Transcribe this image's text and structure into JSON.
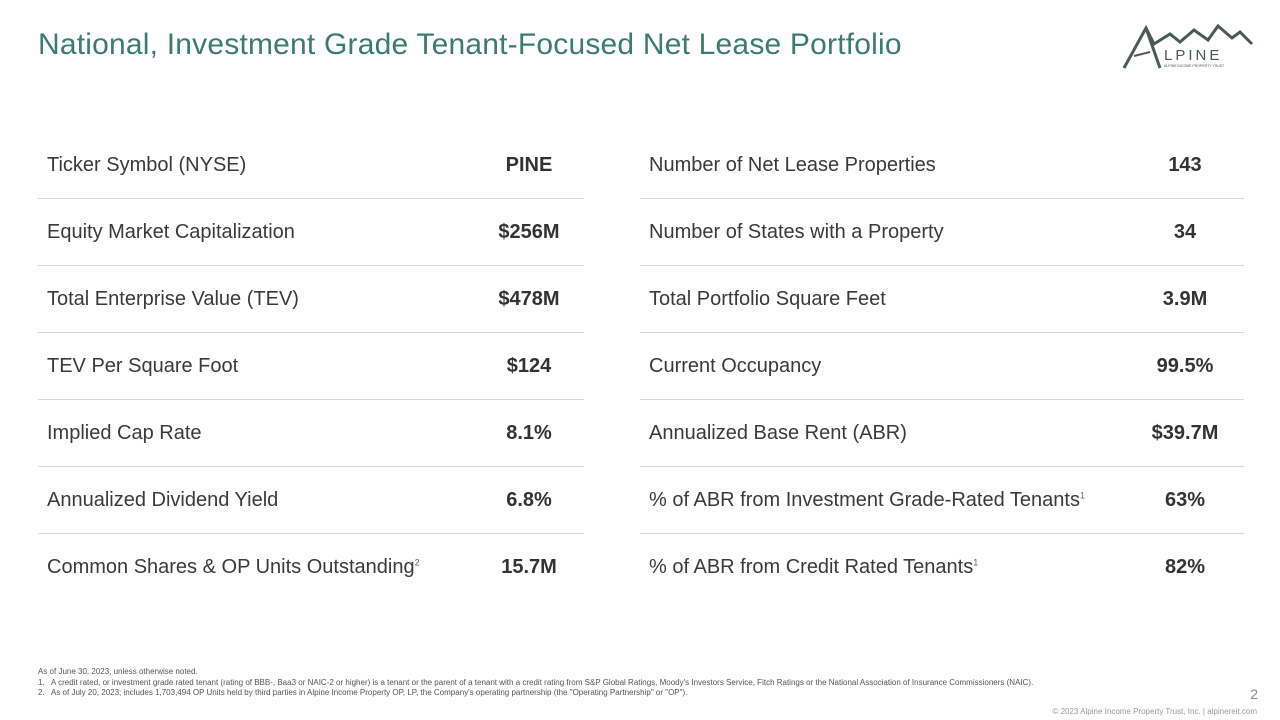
{
  "title": "National, Investment Grade Tenant-Focused Net Lease Portfolio",
  "logo": {
    "text": "ALPINE",
    "tagline": "ALPINE INCOME PROPERTY TRUST",
    "color": "#4a5a55"
  },
  "left_table": [
    {
      "label": "Ticker Symbol (NYSE)",
      "value": "PINE"
    },
    {
      "label": "Equity Market Capitalization",
      "value": "$256M"
    },
    {
      "label": "Total Enterprise Value (TEV)",
      "value": "$478M"
    },
    {
      "label": "TEV Per Square Foot",
      "value": "$124"
    },
    {
      "label": "Implied Cap Rate",
      "value": "8.1%"
    },
    {
      "label": "Annualized Dividend Yield",
      "value": "6.8%"
    },
    {
      "label": "Common Shares & OP Units Outstanding",
      "sup": "2",
      "value": "15.7M"
    }
  ],
  "right_table": [
    {
      "label": "Number of Net Lease Properties",
      "value": "143"
    },
    {
      "label": "Number of States with a Property",
      "value": "34"
    },
    {
      "label": "Total Portfolio Square Feet",
      "value": "3.9M"
    },
    {
      "label": "Current Occupancy",
      "value": "99.5%"
    },
    {
      "label": "Annualized Base Rent (ABR)",
      "value": "$39.7M"
    },
    {
      "label": "% of ABR from Investment Grade-Rated Tenants",
      "sup": "1",
      "value": "63%"
    },
    {
      "label": "% of ABR from Credit Rated Tenants",
      "sup": "1",
      "value": "82%"
    }
  ],
  "notes": {
    "intro": "As of June 30, 2023, unless otherwise noted.",
    "items": [
      {
        "num": "1.",
        "text": "A credit rated, or investment grade rated tenant (rating of BBB-, Baa3 or NAIC-2 or higher) is a tenant or the parent of a tenant with a credit rating from S&P Global Ratings, Moody's Investors Service, Fitch Ratings or the National Association of Insurance Commissioners (NAIC)."
      },
      {
        "num": "2.",
        "text": "As of July 20, 2023; includes 1,703,494 OP Units held by third parties in Alpine Income Property OP, LP, the Company's operating partnership (the \"Operating Partnership\" or \"OP\")."
      }
    ]
  },
  "page_number": "2",
  "footer": "© 2023 Alpine Income Property Trust, Inc.  |  alpinereit.com"
}
